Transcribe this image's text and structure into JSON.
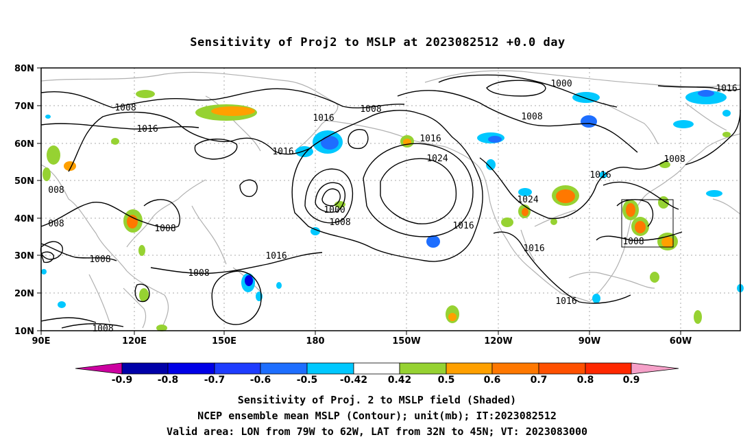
{
  "title": "Sensitivity of Proj2 to MSLP at 2023082512 +0.0 day",
  "lat_labels": [
    "80N",
    "70N",
    "60N",
    "50N",
    "40N",
    "30N",
    "20N",
    "10N"
  ],
  "lon_labels": [
    "90E",
    "120E",
    "150E",
    "180",
    "150W",
    "120W",
    "90W",
    "60W"
  ],
  "contour_labels": [
    {
      "text": "1008"
    },
    {
      "text": "1016"
    },
    {
      "text": "1008"
    },
    {
      "text": "1016"
    },
    {
      "text": "1016"
    },
    {
      "text": "1000"
    },
    {
      "text": "1008"
    },
    {
      "text": "1016"
    },
    {
      "text": "1024"
    },
    {
      "text": "1008"
    },
    {
      "text": "1016"
    },
    {
      "text": "1008"
    },
    {
      "text": "008"
    },
    {
      "text": "008"
    },
    {
      "text": "1008"
    },
    {
      "text": "1008"
    },
    {
      "text": "1008"
    },
    {
      "text": "1016"
    },
    {
      "text": "1000"
    },
    {
      "text": "1008"
    },
    {
      "text": "1016"
    },
    {
      "text": "1024"
    },
    {
      "text": "1016"
    },
    {
      "text": "1016"
    },
    {
      "text": "1016"
    },
    {
      "text": "1008"
    },
    {
      "text": "1016"
    },
    {
      "text": "1016"
    }
  ],
  "colorbar": {
    "bins": [
      {
        "color": "#cc00a0"
      },
      {
        "color": "#0000a8"
      },
      {
        "color": "#0000e6"
      },
      {
        "color": "#1e3cff"
      },
      {
        "color": "#1e6eff"
      },
      {
        "color": "#00c8ff"
      },
      {
        "color": "#ffffff"
      },
      {
        "color": "#96d232"
      },
      {
        "color": "#ffa000"
      },
      {
        "color": "#ff7800"
      },
      {
        "color": "#ff5000"
      },
      {
        "color": "#ff2800"
      },
      {
        "color": "#ff0000"
      },
      {
        "color": "#f5a0c8"
      }
    ],
    "labels": [
      "-0.9",
      "-0.8",
      "-0.7",
      "-0.6",
      "-0.5",
      "-0.42",
      "0.42",
      "0.5",
      "0.6",
      "0.7",
      "0.8",
      "0.9"
    ]
  },
  "captions": [
    "Sensitivity of Proj. 2 to MSLP field (Shaded)",
    "NCEP ensemble mean MSLP (Contour); unit(mb); IT:2023082512",
    "Valid area: LON from 79W to 62W, LAT from 32N to 45N; VT: 2023083000"
  ],
  "colors": {
    "coast": "#b0b0b0",
    "grid": "#a8a8a8",
    "pos_low": "#96d232",
    "pos_mid": "#ffa000",
    "pos_high": "#ff7800",
    "neg_low": "#00c8ff",
    "neg_mid": "#1e6eff",
    "neg_high": "#0000e6"
  }
}
